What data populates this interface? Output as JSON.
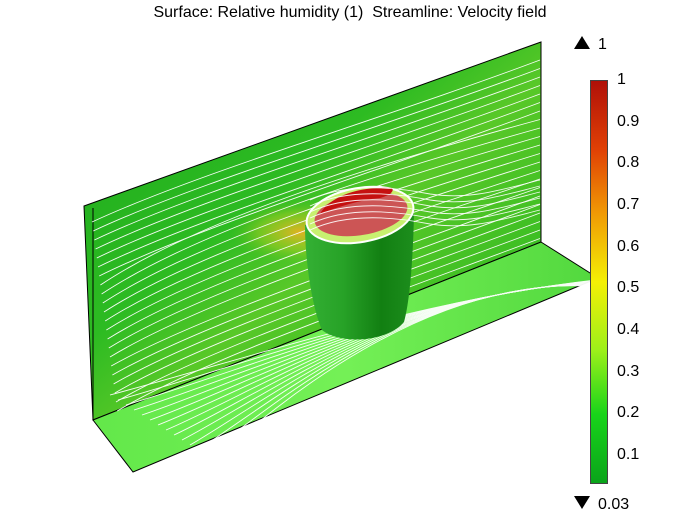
{
  "title": "Surface: Relative humidity (1)  Streamline: Velocity field",
  "colorbar": {
    "max_label": "1",
    "min_label": "0.03",
    "range": [
      0.03,
      1
    ],
    "ticks": [
      "1",
      "0.9",
      "0.8",
      "0.7",
      "0.6",
      "0.5",
      "0.4",
      "0.3",
      "0.2",
      "0.1"
    ],
    "colors": [
      "#0aa41a",
      "#18d41a",
      "#9df01a",
      "#f4f005",
      "#f09a05",
      "#e04005",
      "#b01008"
    ]
  },
  "scene": {
    "wall_color": "#1fbf1f",
    "floor_color": "#6ef050",
    "cup_color": "#2aa82a",
    "liquid_color": "#cc5555",
    "rim_color": "#c8f070",
    "hot_color": "#c81010",
    "streamline_color": "#ffffff"
  }
}
